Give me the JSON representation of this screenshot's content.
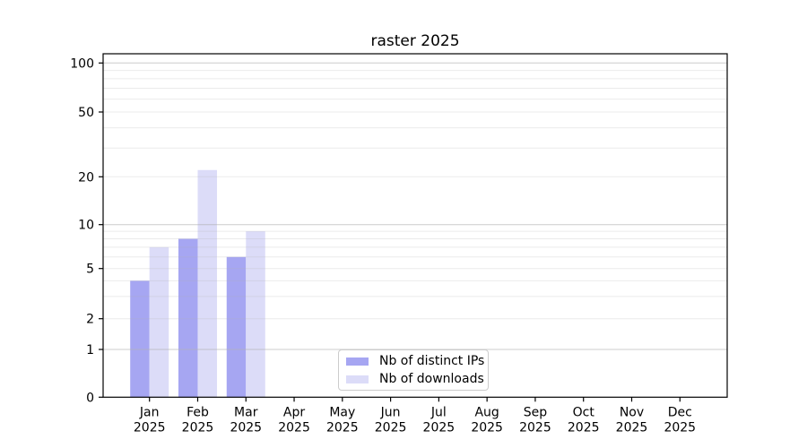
{
  "title": "raster 2025",
  "chart_data": {
    "type": "bar",
    "title": "raster 2025",
    "categories": [
      {
        "month": "Jan",
        "year": "2025"
      },
      {
        "month": "Feb",
        "year": "2025"
      },
      {
        "month": "Mar",
        "year": "2025"
      },
      {
        "month": "Apr",
        "year": "2025"
      },
      {
        "month": "May",
        "year": "2025"
      },
      {
        "month": "Jun",
        "year": "2025"
      },
      {
        "month": "Jul",
        "year": "2025"
      },
      {
        "month": "Aug",
        "year": "2025"
      },
      {
        "month": "Sep",
        "year": "2025"
      },
      {
        "month": "Oct",
        "year": "2025"
      },
      {
        "month": "Nov",
        "year": "2025"
      },
      {
        "month": "Dec",
        "year": "2025"
      }
    ],
    "series": [
      {
        "name": "Nb of distinct IPs",
        "color": "#a6a6f2",
        "values": [
          4,
          8,
          6,
          0,
          0,
          0,
          0,
          0,
          0,
          0,
          0,
          0
        ]
      },
      {
        "name": "Nb of downloads",
        "color": "#dcdcf8",
        "values": [
          7,
          22,
          9,
          0,
          0,
          0,
          0,
          0,
          0,
          0,
          0,
          0
        ]
      }
    ],
    "y_axis": {
      "ticks": [
        0,
        1,
        2,
        5,
        10,
        20,
        50,
        100
      ],
      "scale": "log-like (linear 0-1, logarithmic above)",
      "ylim": [
        0,
        120
      ],
      "gridlines_strong": [
        1,
        10,
        100
      ],
      "gridlines_faint": [
        2,
        3,
        4,
        5,
        6,
        7,
        8,
        9,
        20,
        30,
        40,
        50,
        60,
        70,
        80,
        90
      ]
    },
    "legend_position": "bottom-center-inside",
    "grid": true,
    "colors": {
      "axis": "#000000",
      "grid": "#b0b0b0",
      "text": "#000000",
      "background": "#ffffff"
    }
  },
  "legend": {
    "items": [
      {
        "label": "Nb of distinct IPs"
      },
      {
        "label": "Nb of downloads"
      }
    ]
  }
}
